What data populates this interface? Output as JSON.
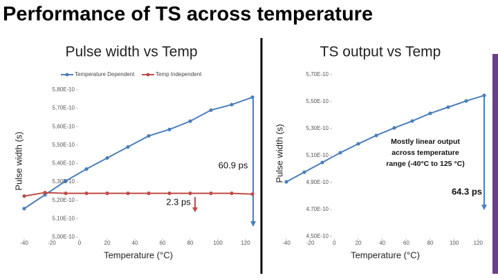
{
  "slide_title": "Performance of TS across temperature",
  "chart_data": [
    {
      "type": "line",
      "title": "Pulse width vs Temp",
      "ylabel": "Pulse width (s)",
      "xlabel": "Temperature (°C)",
      "x": [
        -40,
        -25,
        -10,
        5,
        20,
        35,
        50,
        65,
        80,
        95,
        110,
        125
      ],
      "series": [
        {
          "name": "Temperature Dependent",
          "color": "#4a7ebb",
          "values": [
            5.155e-10,
            5.23e-10,
            5.305e-10,
            5.37e-10,
            5.43e-10,
            5.49e-10,
            5.55e-10,
            5.585e-10,
            5.63e-10,
            5.69e-10,
            5.72e-10,
            5.76e-10
          ]
        },
        {
          "name": "Temp Independent",
          "color": "#be4b48",
          "values": [
            5.223e-10,
            5.242e-10,
            5.238e-10,
            5.238e-10,
            5.238e-10,
            5.238e-10,
            5.238e-10,
            5.238e-10,
            5.238e-10,
            5.238e-10,
            5.238e-10,
            5.234e-10
          ]
        }
      ],
      "xlim": [
        -40,
        125
      ],
      "xticks": [
        -40,
        -20,
        0,
        20,
        40,
        60,
        80,
        100,
        120
      ],
      "ylim": [
        5e-10,
        5.8e-10
      ],
      "yticks": [
        {
          "value": 5e-10,
          "label": "5,00E-10"
        },
        {
          "value": 5.1e-10,
          "label": "5,10E-10"
        },
        {
          "value": 5.2e-10,
          "label": "5,20E-10"
        },
        {
          "value": 5.3e-10,
          "label": "5,30E-10"
        },
        {
          "value": 5.4e-10,
          "label": "5,40E-10"
        },
        {
          "value": 5.5e-10,
          "label": "5,50E-10"
        },
        {
          "value": 5.6e-10,
          "label": "5,60E-10"
        },
        {
          "value": 5.7e-10,
          "label": "5,70E-10"
        },
        {
          "value": 5.8e-10,
          "label": "5,80E-10"
        }
      ],
      "grid": false,
      "legend": "top",
      "annotations": [
        "60.9 ps",
        "2.3 ps"
      ]
    },
    {
      "type": "line",
      "title": "TS output vs Temp",
      "ylabel": "Pulse width (s)",
      "xlabel": "Temperature (°C)",
      "x": [
        -40,
        -25,
        -10,
        5,
        20,
        35,
        50,
        65,
        80,
        95,
        110,
        125
      ],
      "series": [
        {
          "color": "#4a7ebb",
          "values": [
            4.905e-10,
            4.977e-10,
            5.049e-10,
            5.121e-10,
            5.187e-10,
            5.249e-10,
            5.305e-10,
            5.356e-10,
            5.413e-10,
            5.459e-10,
            5.505e-10,
            5.546e-10
          ]
        }
      ],
      "xlim": [
        -40,
        125
      ],
      "xticks": [
        -40,
        -20,
        0,
        20,
        40,
        60,
        80,
        100,
        120
      ],
      "ylim": [
        4.5e-10,
        5.7e-10
      ],
      "yticks": [
        {
          "value": 4.5e-10,
          "label": "4,50E-10"
        },
        {
          "value": 4.7e-10,
          "label": "4,70E-10"
        },
        {
          "value": 4.9e-10,
          "label": "4,90E-10"
        },
        {
          "value": 5.1e-10,
          "label": "5,10E-10"
        },
        {
          "value": 5.3e-10,
          "label": "5,30E-10"
        },
        {
          "value": 5.5e-10,
          "label": "5,50E-10"
        },
        {
          "value": 5.7e-10,
          "label": "5,70E-10"
        }
      ],
      "grid": false,
      "annotations": [
        "Mostly linear output",
        "across temperature",
        "range (-40°C to 125 °C)",
        "64.3 ps"
      ]
    }
  ]
}
